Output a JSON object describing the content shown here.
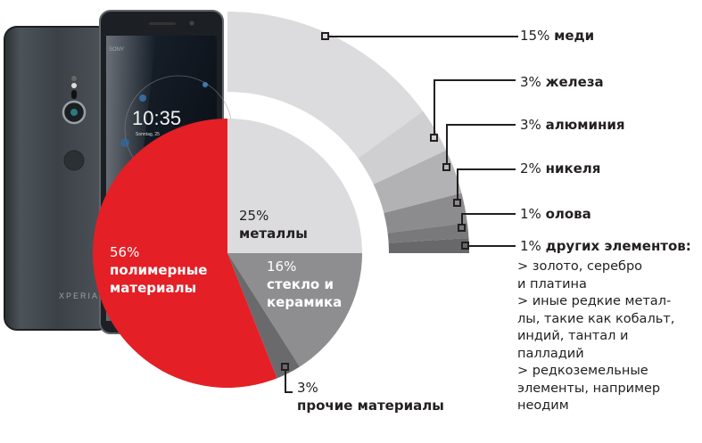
{
  "chart_data": {
    "type": "pie",
    "title": "",
    "main_pie": {
      "categories": [
        "металлы",
        "стекло и керамика",
        "прочие материалы",
        "полимерные материалы"
      ],
      "values": [
        25,
        16,
        3,
        56
      ],
      "colors": [
        "#dcdcde",
        "#8e8e91",
        "#6a6a6d",
        "#e41f26"
      ],
      "start_angle_deg": 0,
      "direction": "clockwise"
    },
    "metals_breakdown_ring": {
      "parent": "металлы",
      "categories": [
        "меди",
        "железа",
        "алюминия",
        "никеля",
        "олова",
        "других элементов"
      ],
      "values": [
        15,
        3,
        3,
        2,
        1,
        1
      ],
      "colors": [
        "#dcdcde",
        "#cfcfd1",
        "#b2b2b5",
        "#8c8c8f",
        "#79797c",
        "#68686b"
      ]
    }
  },
  "pie_labels": {
    "metals": {
      "pct": "25%",
      "name": "металлы"
    },
    "glass": {
      "pct": "16%",
      "name_line1": "стекло и",
      "name_line2": "керамика"
    },
    "polymers": {
      "pct": "56%",
      "name_line1": "полимерные",
      "name_line2": "материалы"
    },
    "other": {
      "pct": "3%",
      "name": "прочие материалы"
    }
  },
  "ring_labels": [
    {
      "pct": "15%",
      "name": "меди"
    },
    {
      "pct": "3%",
      "name": "железа"
    },
    {
      "pct": "3%",
      "name": "алюминия"
    },
    {
      "pct": "2%",
      "name": "никеля"
    },
    {
      "pct": "1%",
      "name": "олова"
    },
    {
      "pct": "1%",
      "name": "других элементов:"
    }
  ],
  "other_elements_note": [
    "> золото, серебро",
    "и платина",
    "> иные редкие метал-",
    "лы, такие как кобальт,",
    "индий, тантал и",
    "палладий",
    "> редкоземельные",
    "элементы, например",
    "неодим"
  ],
  "phone": {
    "brand_text": "XPERIA",
    "clock": "10:35",
    "date_text": "Sonntag, 25",
    "carrier_text": "SONY"
  },
  "colors": {
    "accent_red": "#e41f26",
    "leader_line": "#231f20",
    "phone_body": "#3a3f44"
  }
}
